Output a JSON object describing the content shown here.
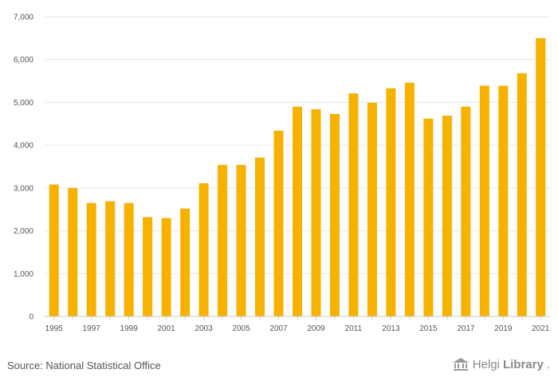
{
  "chart_data": {
    "type": "bar",
    "title": "",
    "xlabel": "",
    "ylabel": "",
    "ylim": [
      0,
      7000
    ],
    "yticks": [
      0,
      1000,
      2000,
      3000,
      4000,
      5000,
      6000,
      7000
    ],
    "ytick_labels": [
      "0",
      "1,000",
      "2,000",
      "3,000",
      "4,000",
      "5,000",
      "6,000",
      "7,000"
    ],
    "categories": [
      "1995",
      "1996",
      "1997",
      "1998",
      "1999",
      "2000",
      "2001",
      "2002",
      "2003",
      "2004",
      "2005",
      "2006",
      "2007",
      "2008",
      "2009",
      "2010",
      "2011",
      "2012",
      "2013",
      "2014",
      "2015",
      "2016",
      "2017",
      "2018",
      "2019",
      "2020",
      "2021"
    ],
    "xtick_labels": [
      "1995",
      "",
      "1997",
      "",
      "1999",
      "",
      "2001",
      "",
      "2003",
      "",
      "2005",
      "",
      "2007",
      "",
      "2009",
      "",
      "2011",
      "",
      "2013",
      "",
      "2015",
      "",
      "2017",
      "",
      "2019",
      "",
      "2021"
    ],
    "values": [
      3080,
      3000,
      2650,
      2690,
      2650,
      2320,
      2300,
      2520,
      3110,
      3540,
      3540,
      3710,
      4340,
      4900,
      4840,
      4730,
      5210,
      4990,
      5330,
      5460,
      4620,
      4690,
      4900,
      5390,
      5390,
      5680,
      6500
    ],
    "bar_color": "#f7b200",
    "grid": true,
    "gridline_color": "#e6e6e6",
    "legend": "none"
  },
  "footer": {
    "source": "Source: National Statistical Office",
    "brand_light": "Helgi",
    "brand_bold": "Library",
    "brand_dot": "."
  }
}
